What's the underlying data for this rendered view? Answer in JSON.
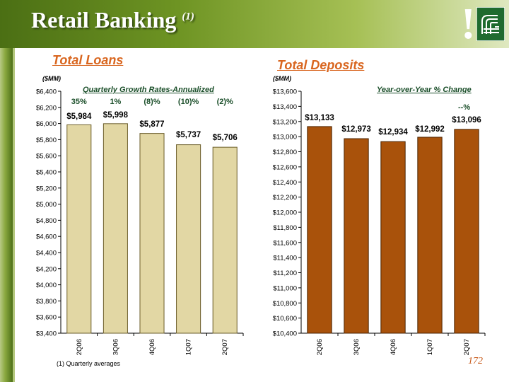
{
  "header": {
    "title": "Retail Banking",
    "title_note": "(1)"
  },
  "footnote": "(1) Quarterly averages",
  "page_number": "172",
  "colors": {
    "loans_bar": "#e2d7a4",
    "deposits_bar": "#a9520b",
    "accent": "#d9661f",
    "text_green": "#1b4f2a"
  },
  "chart_data": [
    {
      "type": "bar",
      "title": "Total Loans",
      "unit_label": "($MM)",
      "subtitle": "Quarterly Growth Rates-Annualized",
      "categories": [
        "2Q06",
        "3Q06",
        "4Q06",
        "1Q07",
        "2Q07"
      ],
      "values": [
        5984,
        5998,
        5877,
        5737,
        5706
      ],
      "value_labels": [
        "$5,984",
        "$5,998",
        "$5,877",
        "$5,737",
        "$5,706"
      ],
      "growth_rates": [
        "35%",
        "1%",
        "(8)%",
        "(10)%",
        "(2)%"
      ],
      "ylim": [
        3400,
        6400
      ],
      "ytick_labels": [
        "$3,400",
        "$3,600",
        "$3,800",
        "$4,000",
        "$4,200",
        "$4,400",
        "$4,600",
        "$4,800",
        "$5,000",
        "$5,200",
        "$5,400",
        "$5,600",
        "$5,800",
        "$6,000",
        "$6,200",
        "$6,400"
      ],
      "grid": false
    },
    {
      "type": "bar",
      "title": "Total Deposits",
      "unit_label": "($MM)",
      "subtitle": "Year-over-Year % Change",
      "change_label": "--%",
      "categories": [
        "2Q06",
        "3Q06",
        "4Q06",
        "1Q07",
        "2Q07"
      ],
      "values": [
        13133,
        12973,
        12934,
        12992,
        13096
      ],
      "value_labels": [
        "$13,133",
        "$12,973",
        "$12,934",
        "$12,992",
        "$13,096"
      ],
      "ylim": [
        10400,
        13600
      ],
      "ytick_labels": [
        "$10,400",
        "$10,600",
        "$10,800",
        "$11,000",
        "$11,200",
        "$11,400",
        "$11,600",
        "$11,800",
        "$12,000",
        "$12,200",
        "$12,400",
        "$12,600",
        "$12,800",
        "$13,000",
        "$13,200",
        "$13,400",
        "$13,600"
      ],
      "grid": false
    }
  ]
}
